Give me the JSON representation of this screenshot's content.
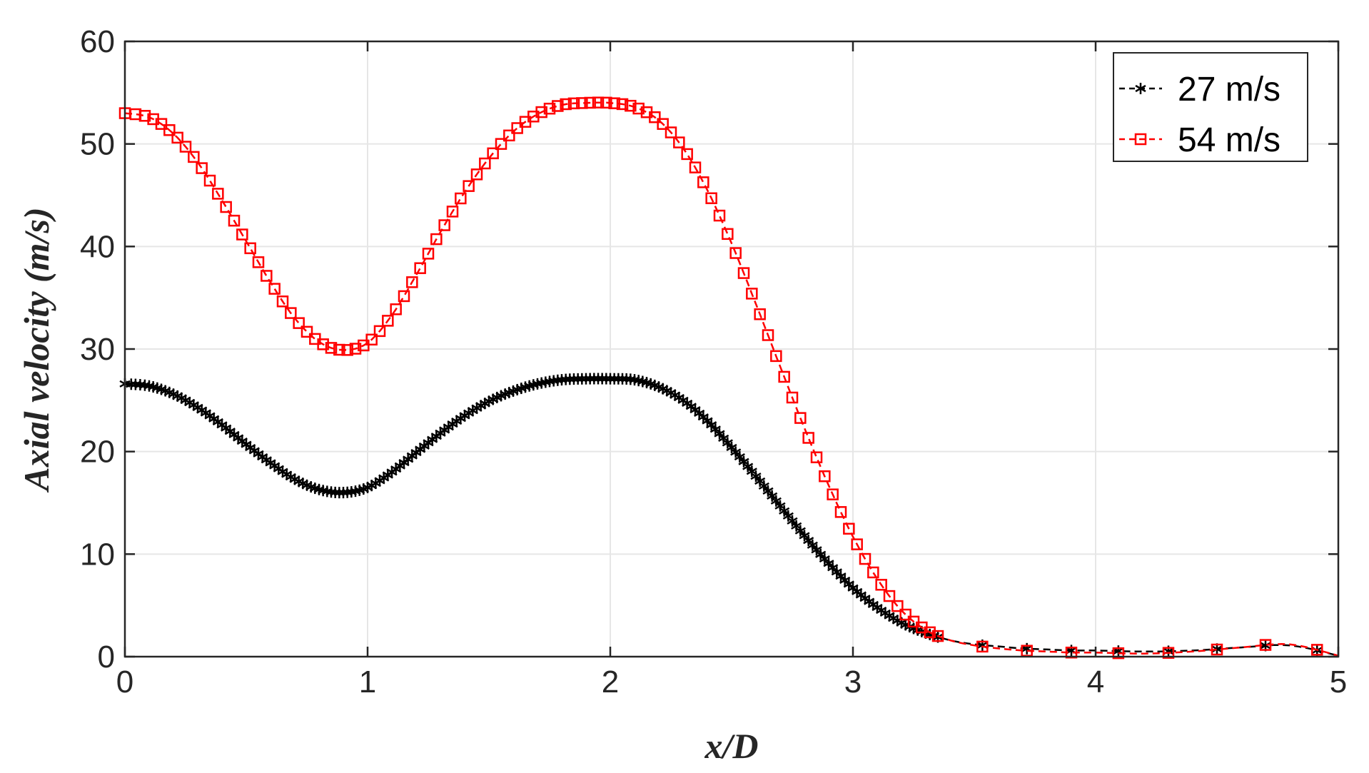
{
  "chart_data": {
    "type": "line",
    "title": "",
    "xlabel": "x/D",
    "ylabel": "Axial velocity (m/s)",
    "xlim": [
      0,
      5
    ],
    "ylim": [
      0,
      60
    ],
    "xticks": [
      "0",
      "1",
      "2",
      "3",
      "4",
      "5"
    ],
    "yticks": [
      "0",
      "10",
      "20",
      "30",
      "40",
      "50",
      "60"
    ],
    "grid": true,
    "legend_position": "top-right",
    "series": [
      {
        "name": "27 m/s",
        "color": "#000000",
        "marker": "asterisk",
        "linestyle": "dashed",
        "x": [
          0,
          0.1,
          0.2,
          0.3,
          0.4,
          0.5,
          0.6,
          0.7,
          0.8,
          0.9,
          1.0,
          1.1,
          1.2,
          1.3,
          1.4,
          1.5,
          1.6,
          1.7,
          1.8,
          1.9,
          2.0,
          2.1,
          2.2,
          2.3,
          2.4,
          2.5,
          2.6,
          2.7,
          2.8,
          2.9,
          3.0,
          3.1,
          3.2,
          3.3,
          3.4,
          3.5,
          3.6,
          3.7,
          3.8,
          3.9,
          4.0,
          4.2,
          4.4,
          4.6,
          4.8,
          5.0
        ],
        "y": [
          26.6,
          26.4,
          25.6,
          24.3,
          22.6,
          20.7,
          18.9,
          17.3,
          16.3,
          16.0,
          16.5,
          18.0,
          19.9,
          21.8,
          23.5,
          24.9,
          25.9,
          26.6,
          27.0,
          27.1,
          27.1,
          27.0,
          26.3,
          25.0,
          23.0,
          20.4,
          17.6,
          14.7,
          11.8,
          9.1,
          6.7,
          4.8,
          3.3,
          2.3,
          1.6,
          1.2,
          1.0,
          0.8,
          0.7,
          0.6,
          0.6,
          0.5,
          0.6,
          0.9,
          1.1,
          0.1
        ]
      },
      {
        "name": "54 m/s",
        "color": "#ff0000",
        "marker": "square",
        "linestyle": "dashed",
        "x": [
          0,
          0.1,
          0.2,
          0.3,
          0.4,
          0.5,
          0.6,
          0.7,
          0.8,
          0.9,
          1.0,
          1.1,
          1.2,
          1.3,
          1.4,
          1.5,
          1.6,
          1.7,
          1.8,
          1.9,
          2.0,
          2.1,
          2.2,
          2.3,
          2.4,
          2.5,
          2.6,
          2.7,
          2.8,
          2.9,
          3.0,
          3.1,
          3.2,
          3.3,
          3.4,
          3.5,
          3.6,
          3.7,
          3.8,
          3.9,
          4.0,
          4.2,
          4.4,
          4.6,
          4.8,
          5.0
        ],
        "y": [
          53.0,
          52.6,
          51.0,
          48.2,
          44.5,
          40.5,
          36.5,
          33.0,
          30.7,
          29.9,
          30.6,
          33.3,
          37.2,
          41.4,
          45.3,
          48.6,
          51.2,
          52.9,
          53.8,
          54.0,
          54.0,
          53.6,
          52.3,
          49.6,
          45.5,
          40.3,
          34.4,
          28.3,
          22.3,
          16.7,
          11.7,
          7.6,
          4.5,
          2.6,
          1.6,
          1.1,
          0.8,
          0.6,
          0.5,
          0.4,
          0.4,
          0.3,
          0.5,
          0.9,
          1.2,
          0.1
        ]
      }
    ]
  }
}
